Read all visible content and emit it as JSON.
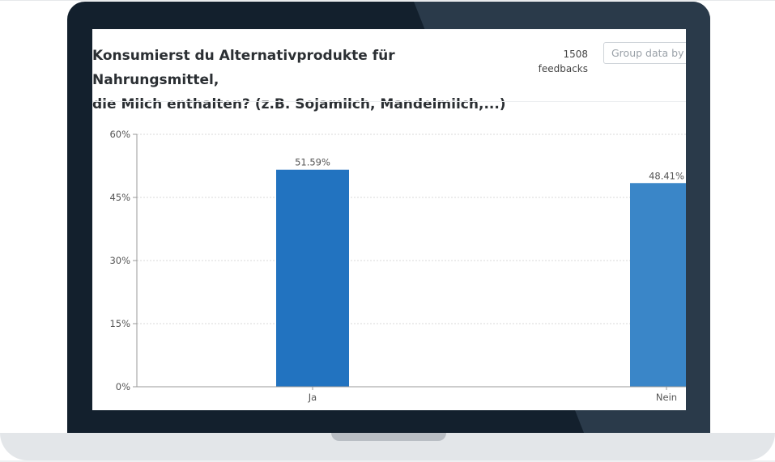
{
  "survey": {
    "title_line1": "Konsumierst du Alternativprodukte für Nahrungsmittel,",
    "title_line2": "die Milch enthalten? (z.B. Sojamilch, Mandelmilch,...)",
    "feedback_count": "1508",
    "feedback_label": "feedbacks",
    "group_by_placeholder": "Group data by"
  },
  "colors": {
    "bar_primary": "#2273c0",
    "bar_secondary": "#3a86c8",
    "frame": "#13202d",
    "frame_shine": "#2a3a4a"
  },
  "chart_data": {
    "type": "bar",
    "categories": [
      "Ja",
      "Nein"
    ],
    "values": [
      51.59,
      48.41
    ],
    "value_labels": [
      "51.59%",
      "48.41%"
    ],
    "title": "Konsumierst du Alternativprodukte für Nahrungsmittel, die Milch enthalten? (z.B. Sojamilch, Mandelmilch,...)",
    "xlabel": "",
    "ylabel": "",
    "ylim": [
      0,
      60
    ],
    "yticks": [
      0,
      15,
      30,
      45,
      60
    ],
    "ytick_labels": [
      "0%",
      "15%",
      "30%",
      "45%",
      "60%"
    ],
    "grid": true,
    "legend": "none"
  }
}
